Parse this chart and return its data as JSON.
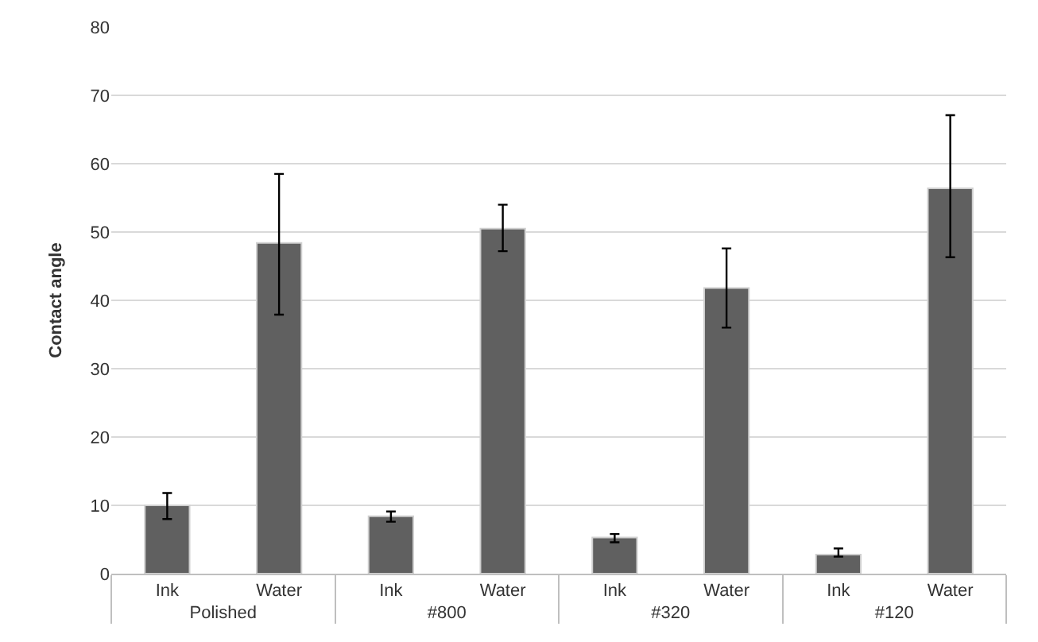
{
  "chart_data": {
    "type": "bar",
    "ylabel": "Contact angle",
    "categories": [
      "Ink",
      "Water",
      "Ink",
      "Water",
      "Ink",
      "Water",
      "Ink",
      "Water"
    ],
    "annotations": [
      "Polished",
      "#800",
      "#320",
      "#120"
    ],
    "values": [
      10.0,
      48.4,
      8.4,
      50.5,
      5.3,
      41.8,
      2.8,
      56.4
    ],
    "errors": [
      [
        8.0,
        11.8
      ],
      [
        37.9,
        58.5
      ],
      [
        7.6,
        9.1
      ],
      [
        47.2,
        54.0
      ],
      [
        4.6,
        5.8
      ],
      [
        36.0,
        47.6
      ],
      [
        2.5,
        3.7
      ],
      [
        46.3,
        67.1
      ]
    ],
    "color": "#606060",
    "ylim": [
      0,
      80
    ],
    "yticks": [
      0,
      10,
      20,
      30,
      40,
      50,
      60,
      70,
      80
    ],
    "grid": "y"
  }
}
